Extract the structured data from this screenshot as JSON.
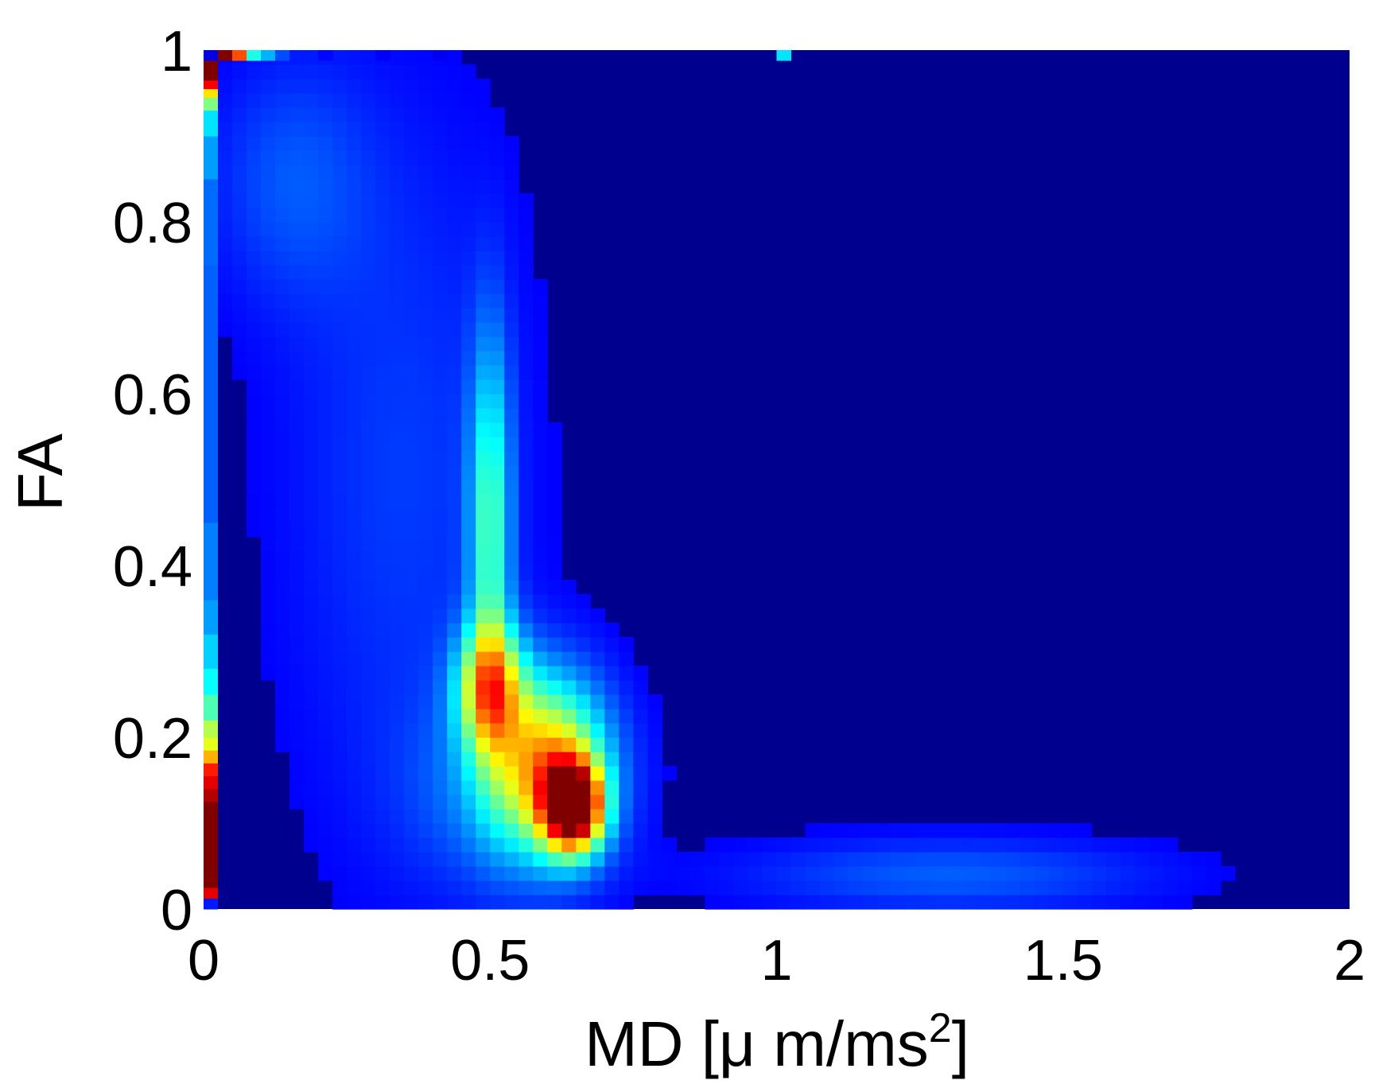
{
  "chart_data": {
    "type": "heatmap",
    "title": "",
    "xlabel": "MD [μ m/ms²]",
    "xlabel_parts": {
      "main": "MD [μ m/ms",
      "sup": "2",
      "close": "]"
    },
    "ylabel": "FA",
    "xlim": [
      0,
      2
    ],
    "ylim": [
      0,
      1
    ],
    "xticks": [
      "0",
      "0.5",
      "1",
      "1.5",
      "2"
    ],
    "yticks": [
      "0",
      "0.2",
      "0.4",
      "0.6",
      "0.8",
      "1"
    ],
    "xtick_values": [
      0,
      0.5,
      1,
      1.5,
      2
    ],
    "ytick_values": [
      0,
      0.2,
      0.4,
      0.6,
      0.8,
      1
    ],
    "grid": false,
    "colormap": "jet",
    "background_color": "#00008f",
    "blobs": [
      {
        "x": 0.645,
        "y": 0.12,
        "sx": 0.035,
        "sy": 0.035,
        "amp": 1.0
      },
      {
        "x": 0.6,
        "y": 0.17,
        "sx": 0.07,
        "sy": 0.07,
        "amp": 0.55
      },
      {
        "x": 0.5,
        "y": 0.26,
        "sx": 0.04,
        "sy": 0.05,
        "amp": 0.55
      },
      {
        "x": 0.5,
        "y": 0.45,
        "sx": 0.025,
        "sy": 0.15,
        "amp": 0.35
      },
      {
        "x": 0.54,
        "y": 0.14,
        "sx": 0.12,
        "sy": 0.08,
        "amp": 0.15
      },
      {
        "x": 0.35,
        "y": 0.5,
        "sx": 0.15,
        "sy": 0.3,
        "amp": 0.08
      },
      {
        "x": 1.3,
        "y": 0.04,
        "sx": 0.25,
        "sy": 0.03,
        "amp": 0.12
      },
      {
        "x": 0.15,
        "y": 0.85,
        "sx": 0.1,
        "sy": 0.1,
        "amp": 0.1
      }
    ],
    "left_column_bins": [
      {
        "y": 0.0,
        "value": 0.15
      },
      {
        "y": 0.0125,
        "value": 0.9
      },
      {
        "y": 0.025,
        "value": 1.0
      },
      {
        "y": 0.05,
        "value": 1.0
      },
      {
        "y": 0.075,
        "value": 1.0
      },
      {
        "y": 0.1,
        "value": 1.0
      },
      {
        "y": 0.125,
        "value": 0.95
      },
      {
        "y": 0.14,
        "value": 0.9
      },
      {
        "y": 0.155,
        "value": 0.85
      },
      {
        "y": 0.17,
        "value": 0.7
      },
      {
        "y": 0.185,
        "value": 0.6
      },
      {
        "y": 0.2,
        "value": 0.55
      },
      {
        "y": 0.22,
        "value": 0.45
      },
      {
        "y": 0.25,
        "value": 0.38
      },
      {
        "y": 0.28,
        "value": 0.33
      },
      {
        "y": 0.32,
        "value": 0.28
      },
      {
        "y": 0.36,
        "value": 0.25
      },
      {
        "y": 0.45,
        "value": 0.22
      },
      {
        "y": 0.6,
        "value": 0.22
      },
      {
        "y": 0.75,
        "value": 0.23
      },
      {
        "y": 0.85,
        "value": 0.28
      },
      {
        "y": 0.9,
        "value": 0.35
      },
      {
        "y": 0.93,
        "value": 0.5
      },
      {
        "y": 0.945,
        "value": 0.65
      },
      {
        "y": 0.955,
        "value": 0.88
      },
      {
        "y": 0.965,
        "value": 1.0
      },
      {
        "y": 0.975,
        "value": 1.0
      },
      {
        "y": 0.9875,
        "value": 1.0
      }
    ],
    "top_row_bins": [
      {
        "x": 0.0,
        "value": 0.1
      },
      {
        "x": 0.025,
        "value": 1.0
      },
      {
        "x": 0.05,
        "value": 0.8
      },
      {
        "x": 0.075,
        "value": 0.4
      },
      {
        "x": 0.1,
        "value": 0.3
      },
      {
        "x": 0.125,
        "value": 0.2
      },
      {
        "x": 0.15,
        "value": 0.15
      },
      {
        "x": 0.2,
        "value": 0.13
      },
      {
        "x": 0.3,
        "value": 0.12
      },
      {
        "x": 0.4,
        "value": 0.11
      },
      {
        "x": 1.0,
        "value": 0.35
      }
    ]
  }
}
